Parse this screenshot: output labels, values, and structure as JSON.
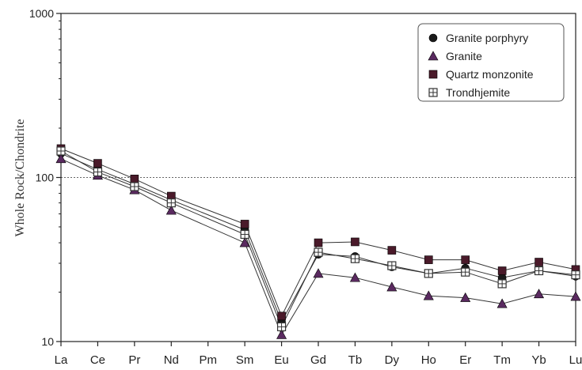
{
  "chart_data": {
    "type": "line",
    "title": "",
    "xlabel": "",
    "ylabel": "Whole Rock/Chondrite",
    "yscale": "log",
    "ylim": [
      10,
      1000
    ],
    "yticks": [
      10,
      100,
      1000
    ],
    "ytick_labels": [
      "10",
      "100",
      "1000"
    ],
    "reference_line": 100,
    "legend_position": "top-right",
    "categories": [
      "La",
      "Ce",
      "Pr",
      "Nd",
      "Pm",
      "Sm",
      "Eu",
      "Gd",
      "Tb",
      "Dy",
      "Ho",
      "Er",
      "Tm",
      "Yb",
      "Lu"
    ],
    "series": [
      {
        "name": "Granite porphyry",
        "marker": "circle",
        "color": "#1a1a1a",
        "values": [
          140,
          112,
          91,
          73,
          null,
          48,
          13.2,
          34,
          33,
          28.5,
          26,
          28,
          24.5,
          27,
          25
        ]
      },
      {
        "name": "Granite",
        "marker": "triangle",
        "color": "#5a2a60",
        "values": [
          130,
          103,
          84,
          63,
          null,
          40,
          11,
          26,
          24.5,
          21.5,
          19,
          18.5,
          17,
          19.5,
          18.8
        ]
      },
      {
        "name": "Quartz monzonite",
        "marker": "square",
        "color": "#4a1a2a",
        "values": [
          150,
          122,
          98,
          77,
          null,
          52,
          14.3,
          40,
          40.5,
          36,
          31.5,
          31.5,
          27,
          30.5,
          27.5
        ]
      },
      {
        "name": "Trondhjemite",
        "marker": "square-cross",
        "color": "#333333",
        "values": [
          145,
          108,
          88,
          70,
          null,
          45,
          12.3,
          35,
          32,
          29,
          26,
          26.5,
          22.5,
          27,
          25.5
        ]
      }
    ]
  }
}
